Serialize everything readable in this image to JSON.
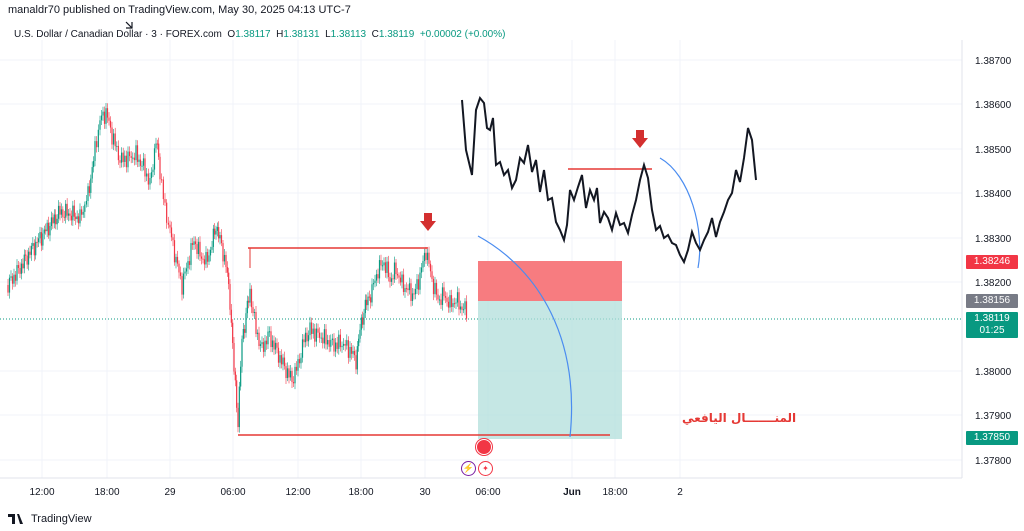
{
  "publish_line": "manaldr70 published on TradingView.com, May 30, 2025 04:13 UTC-7",
  "symbol": {
    "name": "U.S. Dollar / Canadian Dollar · 3 · FOREX.com",
    "o_label": "O",
    "o": "1.38117",
    "h_label": "H",
    "h": "1.38131",
    "l_label": "L",
    "l": "1.38113",
    "c_label": "C",
    "c": "1.38119",
    "change": "+0.00002 (+0.00%)"
  },
  "price_axis": [
    "1.38700",
    "1.38600",
    "1.38500",
    "1.38400",
    "1.38300",
    "1.38200",
    "1.38000",
    "1.37900",
    "1.37800"
  ],
  "price_labels": {
    "target_high": "1.38246",
    "mid": "1.38156",
    "current": "1.38119",
    "countdown": "01:25",
    "target_low": "1.37850"
  },
  "time_axis": [
    "12:00",
    "18:00",
    "29",
    "06:00",
    "12:00",
    "18:00",
    "30",
    "06:00",
    "Jun",
    "18:00",
    "2"
  ],
  "annotation_text": "المنـــــــال اليافعي",
  "footer_brand": "TradingView",
  "colors": {
    "up": "#089981",
    "down": "#f23645",
    "line": "#e53935",
    "stop_zone": "#f77c80",
    "target_zone": "#b2dfdb",
    "current_label": "#089981",
    "target_high_label": "#f23645",
    "mid_label": "#787b86"
  }
}
